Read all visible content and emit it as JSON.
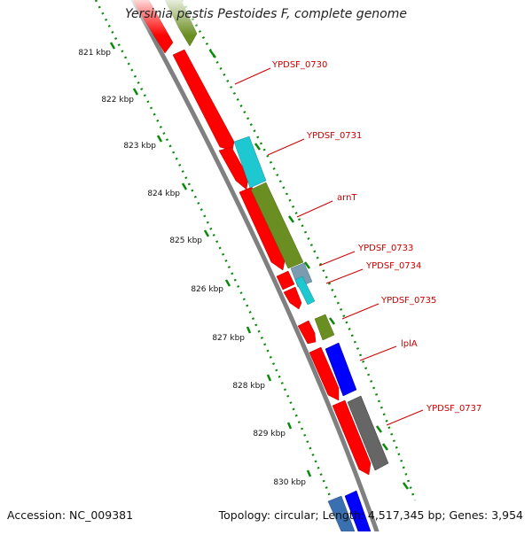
{
  "title": "Yersinia pestis Pestoides F, complete genome",
  "footer": {
    "accession": "Accession: NC_009381",
    "summary": "Topology: circular; Length: 4,517,345 bp; Genes: 3,954"
  },
  "colors": {
    "forward_cds": "#ff0000",
    "reverse_cds": "#6b8e23",
    "cyan_feature": "#00bcd4",
    "blue_feature": "#0000ff",
    "gray_feature": "#666666",
    "backbone": "#808080",
    "tick": "#008000",
    "label": "#cc0000"
  },
  "ticks": [
    "821 kbp",
    "822 kbp",
    "823 kbp",
    "824 kbp",
    "825 kbp",
    "826 kbp",
    "827 kbp",
    "828 kbp",
    "829 kbp",
    "830 kbp"
  ],
  "genes": [
    "YPDSF_0730",
    "YPDSF_0731",
    "arnT",
    "YPDSF_0733",
    "YPDSF_0734",
    "YPDSF_0735",
    "lplA",
    "YPDSF_0737"
  ]
}
